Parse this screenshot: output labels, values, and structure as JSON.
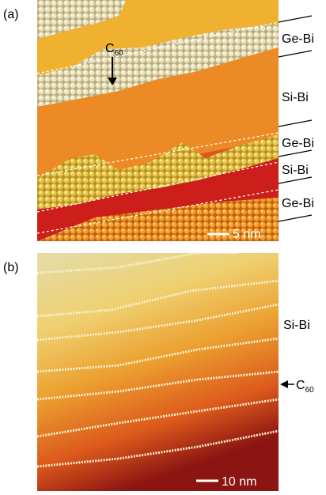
{
  "panel_a": {
    "label": "(a)",
    "molecule": {
      "base": "C",
      "sub": "60"
    },
    "regions": [
      "Ge-Bi",
      "Si-Bi",
      "Ge-Bi",
      "Si-Bi",
      "Ge-Bi"
    ],
    "scale_bar": "5 nm"
  },
  "panel_b": {
    "label": "(b)",
    "region": "Si-Bi",
    "molecule": {
      "base": "C",
      "sub": "60"
    },
    "scale_bar": "10 nm"
  }
}
